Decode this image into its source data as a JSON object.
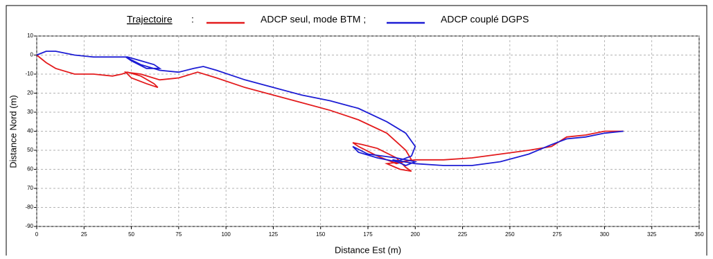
{
  "chart_data": {
    "type": "line",
    "legend_title": "Trajectoire",
    "legend_separator": ":",
    "xlabel": "Distance Est (m)",
    "ylabel": "Distance Nord (m)",
    "xlim": [
      0,
      350
    ],
    "xticks": [
      0,
      25,
      50,
      75,
      100,
      125,
      150,
      175,
      200,
      225,
      250,
      275,
      300,
      325,
      350
    ],
    "ylim": [
      -90,
      10
    ],
    "yticks": [
      10,
      0,
      -10,
      {
        "value": -20,
        "label": "20"
      },
      {
        "value": -30,
        "label": "30"
      },
      {
        "value": -40,
        "label": "40"
      },
      {
        "value": -50,
        "label": "50"
      },
      {
        "value": -60,
        "label": "60"
      },
      {
        "value": -70,
        "label": "70"
      },
      -80,
      -90
    ],
    "grid": true,
    "series": [
      {
        "name": "ADCP seul, mode BTM ;",
        "color": "#e31a1c",
        "x": [
          0,
          5,
          10,
          20,
          30,
          40,
          45,
          48,
          55,
          62,
          64,
          58,
          50,
          47,
          55,
          65,
          75,
          85,
          95,
          110,
          125,
          140,
          155,
          170,
          185,
          195,
          198,
          190,
          180,
          170,
          167,
          172,
          180,
          190,
          195,
          198,
          192,
          185,
          200,
          215,
          230,
          245,
          260,
          272,
          280,
          290,
          300,
          310
        ],
        "values": [
          0,
          -4,
          -7,
          -10,
          -10,
          -11,
          -10,
          -9,
          -11,
          -15,
          -17,
          -15,
          -12,
          -9,
          -10,
          -13,
          -12,
          -9,
          -12,
          -17,
          -21,
          -25,
          -29,
          -34,
          -41,
          -50,
          -55,
          -57,
          -53,
          -48,
          -46,
          -47,
          -49,
          -54,
          -59,
          -61,
          -60,
          -57,
          -55,
          -55,
          -54,
          -52,
          -50,
          -48,
          -43,
          -42,
          -40,
          -40
        ]
      },
      {
        "name": "ADCP couplé DGPS",
        "color": "#1c1cd4",
        "x": [
          0,
          5,
          10,
          15,
          20,
          30,
          40,
          48,
          55,
          62,
          65,
          58,
          50,
          47,
          55,
          65,
          75,
          83,
          88,
          95,
          110,
          125,
          140,
          155,
          170,
          185,
          195,
          200,
          198,
          190,
          180,
          170,
          167,
          175,
          190,
          200,
          195,
          188,
          200,
          215,
          230,
          245,
          260,
          272,
          280,
          290,
          300,
          310
        ],
        "values": [
          0,
          2,
          2,
          1,
          0,
          -1,
          -1,
          -1,
          -3,
          -5,
          -7,
          -7,
          -3,
          -1,
          -5,
          -8,
          -9,
          -7,
          -6,
          -8,
          -13,
          -17,
          -21,
          -24,
          -28,
          -35,
          -41,
          -48,
          -53,
          -56,
          -54,
          -51,
          -48,
          -52,
          -54,
          -56,
          -58,
          -55,
          -57,
          -58,
          -58,
          -56,
          -52,
          -47,
          -44,
          -43,
          -41,
          -40
        ]
      }
    ]
  }
}
